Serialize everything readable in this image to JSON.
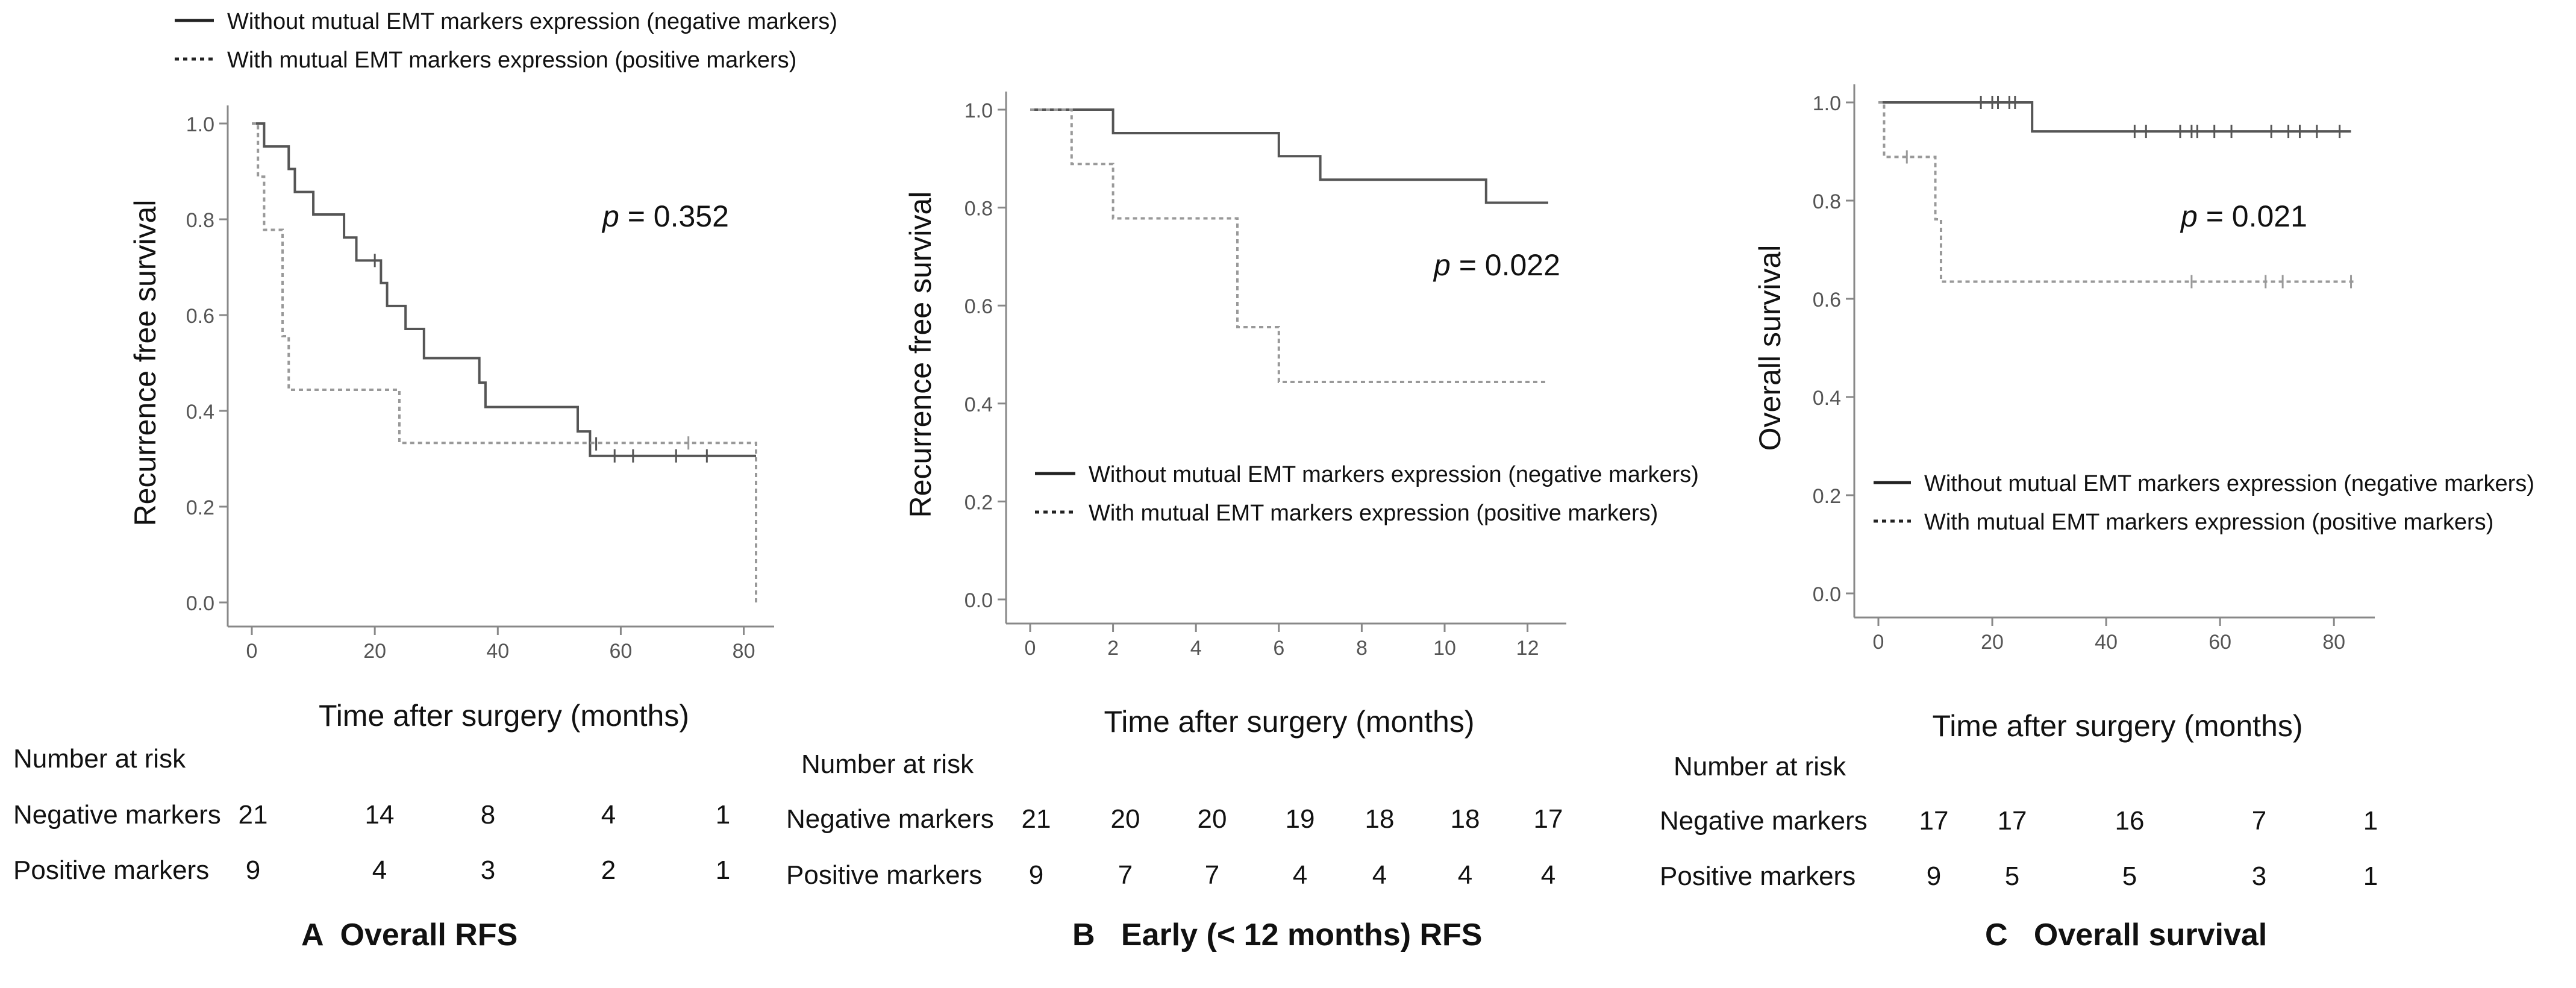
{
  "legend": {
    "negative": "Without mutual EMT markers expression (negative markers)",
    "positive": "With mutual EMT markers expression (positive markers)"
  },
  "colors": {
    "negative": "#555555",
    "positive": "#999999",
    "axis": "#888888",
    "text": "#111111"
  },
  "chart_data": [
    {
      "type": "line",
      "title": "A  Overall RFS",
      "xlabel": "Time after surgery (months)",
      "ylabel": "Recurrence free survival",
      "xlim": [
        0,
        82
      ],
      "ylim": [
        0,
        1.0
      ],
      "xticks": [
        0,
        20,
        40,
        60,
        80
      ],
      "yticks": [
        0.0,
        0.2,
        0.4,
        0.6,
        0.8,
        1.0
      ],
      "pvalue": "p = 0.352",
      "legend_position": "top-left outside",
      "series": [
        {
          "name": "Without mutual EMT markers expression (negative markers)",
          "style": "solid",
          "steps": [
            [
              0,
              1.0
            ],
            [
              2,
              0.952
            ],
            [
              6,
              0.905
            ],
            [
              7,
              0.857
            ],
            [
              10,
              0.81
            ],
            [
              15,
              0.762
            ],
            [
              17,
              0.714
            ],
            [
              21,
              0.667
            ],
            [
              22,
              0.619
            ],
            [
              25,
              0.571
            ],
            [
              28,
              0.51
            ],
            [
              37,
              0.459
            ],
            [
              38,
              0.408
            ],
            [
              53,
              0.357
            ],
            [
              55,
              0.306
            ],
            [
              82,
              0.306
            ]
          ],
          "censored": [
            [
              20,
              0.714
            ],
            [
              56,
              0.331
            ],
            [
              59,
              0.306
            ],
            [
              62,
              0.306
            ],
            [
              69,
              0.306
            ],
            [
              74,
              0.306
            ]
          ]
        },
        {
          "name": "With mutual EMT markers expression (positive markers)",
          "style": "dotted",
          "steps": [
            [
              0,
              1.0
            ],
            [
              1,
              0.889
            ],
            [
              2,
              0.778
            ],
            [
              5,
              0.556
            ],
            [
              6,
              0.444
            ],
            [
              24,
              0.333
            ],
            [
              82,
              0.333
            ],
            [
              82,
              0.0
            ]
          ],
          "censored": [
            [
              71,
              0.333
            ]
          ]
        }
      ],
      "risk_table": {
        "header": "Number  at risk",
        "rows": [
          {
            "label": "Negative markers",
            "values": [
              "21",
              "14",
              "8",
              "4",
              "1"
            ]
          },
          {
            "label": "Positive markers",
            "values": [
              "9",
              "4",
              "3",
              "2",
              "1"
            ]
          }
        ]
      }
    },
    {
      "type": "line",
      "title": "B   Early (< 12 months) RFS",
      "xlabel": "Time after surgery (months)",
      "ylabel": "Recurrence free survival",
      "xlim": [
        0,
        12.5
      ],
      "ylim": [
        0,
        1.0
      ],
      "xticks": [
        0,
        2,
        4,
        6,
        8,
        10,
        12
      ],
      "yticks": [
        0.0,
        0.2,
        0.4,
        0.6,
        0.8,
        1.0
      ],
      "pvalue": "p = 0.022",
      "legend_position": "lower-left",
      "series": [
        {
          "name": "Without mutual EMT markers expression (negative markers)",
          "style": "solid",
          "steps": [
            [
              0,
              1.0
            ],
            [
              2,
              0.952
            ],
            [
              6,
              0.905
            ],
            [
              7,
              0.857
            ],
            [
              11,
              0.81
            ],
            [
              12.5,
              0.81
            ]
          ],
          "censored": []
        },
        {
          "name": "With mutual EMT markers expression (positive markers)",
          "style": "dotted",
          "steps": [
            [
              0,
              1.0
            ],
            [
              1,
              0.889
            ],
            [
              2,
              0.778
            ],
            [
              5,
              0.556
            ],
            [
              6,
              0.444
            ],
            [
              12.5,
              0.444
            ]
          ],
          "censored": []
        }
      ],
      "risk_table": {
        "header": "Number  at risk",
        "rows": [
          {
            "label": "Negative markers",
            "values": [
              "21",
              "20",
              "20",
              "19",
              "18",
              "18",
              "17"
            ]
          },
          {
            "label": "Positive markers",
            "values": [
              "9",
              "7",
              "7",
              "4",
              "4",
              "4",
              "4"
            ]
          }
        ]
      }
    },
    {
      "type": "line",
      "title": "C   Overall survival",
      "xlabel": "Time after surgery (months)",
      "ylabel": "Overall survival",
      "xlim": [
        0,
        84
      ],
      "ylim": [
        0,
        1.0
      ],
      "xticks": [
        0,
        20,
        40,
        60,
        80
      ],
      "yticks": [
        0.0,
        0.2,
        0.4,
        0.6,
        0.8,
        1.0
      ],
      "pvalue": "p = 0.021",
      "legend_position": "lower-left",
      "series": [
        {
          "name": "Without mutual EMT markers expression (negative markers)",
          "style": "solid",
          "steps": [
            [
              0,
              1.0
            ],
            [
              27,
              0.941
            ],
            [
              83,
              0.941
            ]
          ],
          "censored": [
            [
              18,
              1.0
            ],
            [
              20,
              1.0
            ],
            [
              21,
              1.0
            ],
            [
              23,
              1.0
            ],
            [
              24,
              1.0
            ],
            [
              45,
              0.941
            ],
            [
              47,
              0.941
            ],
            [
              53,
              0.941
            ],
            [
              55,
              0.941
            ],
            [
              56,
              0.941
            ],
            [
              59,
              0.941
            ],
            [
              62,
              0.941
            ],
            [
              69,
              0.941
            ],
            [
              72,
              0.941
            ],
            [
              74,
              0.941
            ],
            [
              77,
              0.941
            ],
            [
              81,
              0.941
            ]
          ]
        },
        {
          "name": "With mutual EMT markers expression (positive markers)",
          "style": "dotted",
          "steps": [
            [
              0,
              1.0
            ],
            [
              1,
              0.889
            ],
            [
              10,
              0.762
            ],
            [
              11,
              0.635
            ],
            [
              84,
              0.635
            ]
          ],
          "censored": [
            [
              5,
              0.889
            ],
            [
              55,
              0.635
            ],
            [
              68,
              0.635
            ],
            [
              71,
              0.635
            ],
            [
              83,
              0.635
            ]
          ]
        }
      ],
      "risk_table": {
        "header": "Number  at risk",
        "rows": [
          {
            "label": "Negative markers",
            "values": [
              "17",
              "17",
              "16",
              "7",
              "1"
            ]
          },
          {
            "label": "Positive markers",
            "values": [
              "9",
              "5",
              "5",
              "3",
              "1"
            ]
          }
        ]
      }
    }
  ]
}
